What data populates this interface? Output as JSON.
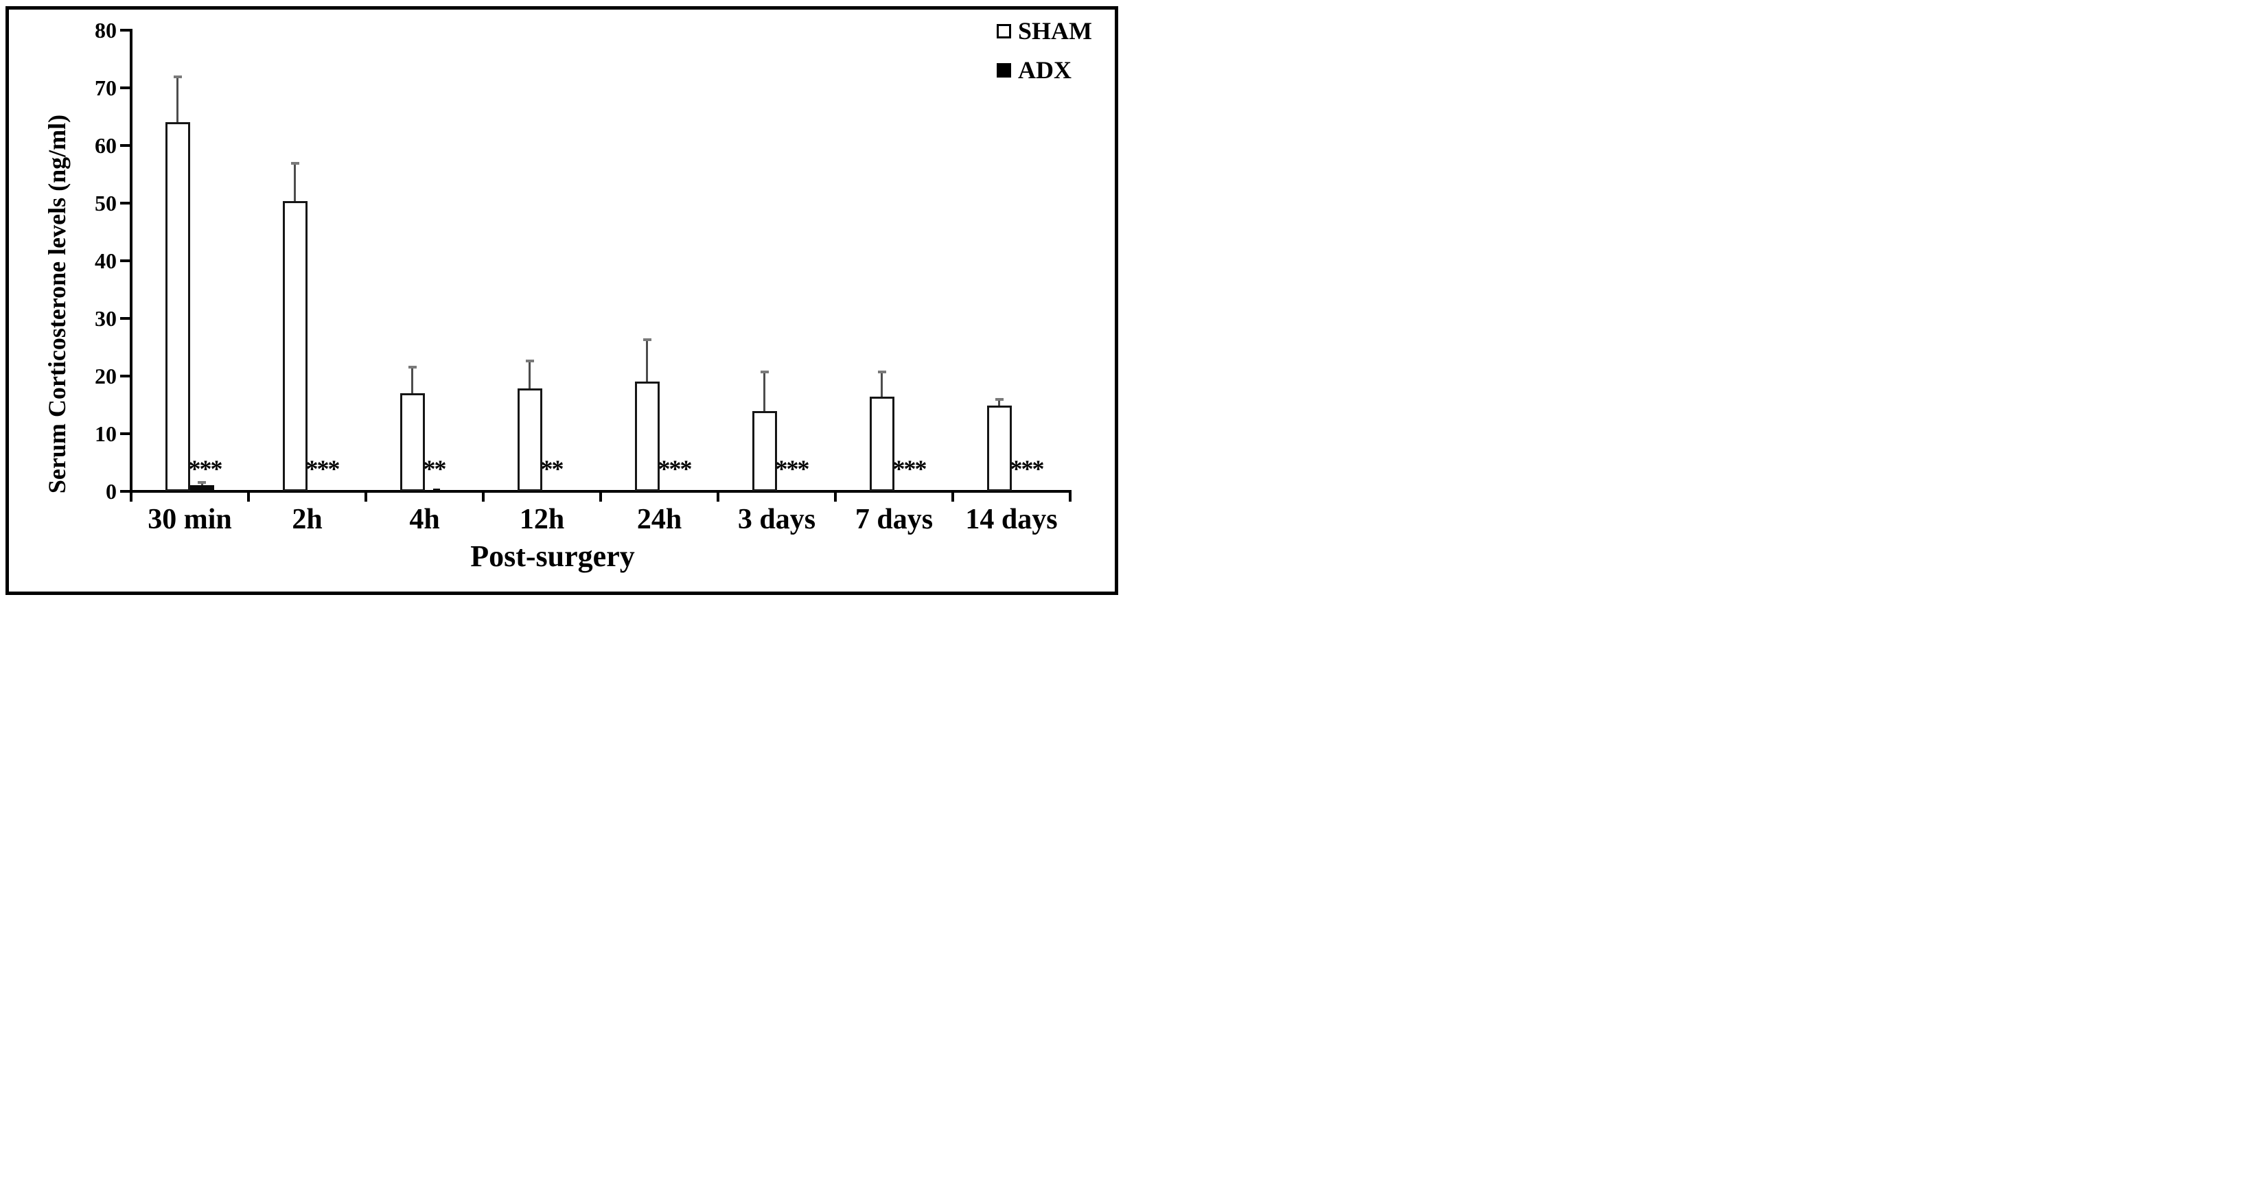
{
  "figure": {
    "background": "#ffffff",
    "border_color": "#000000"
  },
  "legend": {
    "items": [
      {
        "label": "SHAM",
        "swatch": "open-square",
        "fill": "#ffffff"
      },
      {
        "label": "ADX",
        "swatch": "filled-square",
        "fill": "#000000"
      }
    ]
  },
  "axes": {
    "yticks": [
      "0",
      "10",
      "20",
      "30",
      "40",
      "50",
      "60",
      "70",
      "80"
    ],
    "xlabel": "Post-surgery",
    "ylabel": "Serum Corticosterone levels (ng/ml)"
  },
  "chart_data": {
    "type": "bar",
    "title": "",
    "categories": [
      "30 min",
      "2h",
      "4h",
      "12h",
      "24h",
      "3 days",
      "7 days",
      "14 days"
    ],
    "series": [
      {
        "name": "SHAM",
        "fill": "#ffffff",
        "stroke": "#000000",
        "values": [
          64.0,
          50.3,
          17.0,
          17.9,
          19.1,
          13.9,
          16.4,
          14.9
        ],
        "errors_plus": [
          8.2,
          6.9,
          4.8,
          5.0,
          7.4,
          7.0,
          4.5,
          1.3
        ]
      },
      {
        "name": "ADX",
        "fill": "#000000",
        "stroke": "#000000",
        "values": [
          1.1,
          0,
          0.5,
          0,
          0,
          0,
          0,
          0
        ],
        "errors_plus": [
          0.7,
          0,
          0,
          0,
          0,
          0,
          0,
          0
        ]
      }
    ],
    "significance_adx_vs_sham": [
      "***",
      "***",
      "**",
      "**",
      "***",
      "***",
      "***",
      "***"
    ],
    "xlabel": "Post-surgery",
    "ylabel": "Serum Corticosterone levels (ng/ml)",
    "ylim": [
      0,
      80
    ],
    "ytick_step": 10,
    "grid": false,
    "legend_position": "top-right",
    "error_bar_color": "#4d4d4d",
    "error_cap_color": "#7a7a7a",
    "bar_group_layout": "SHAM and ADX bars adjacent, pair centered on category"
  }
}
